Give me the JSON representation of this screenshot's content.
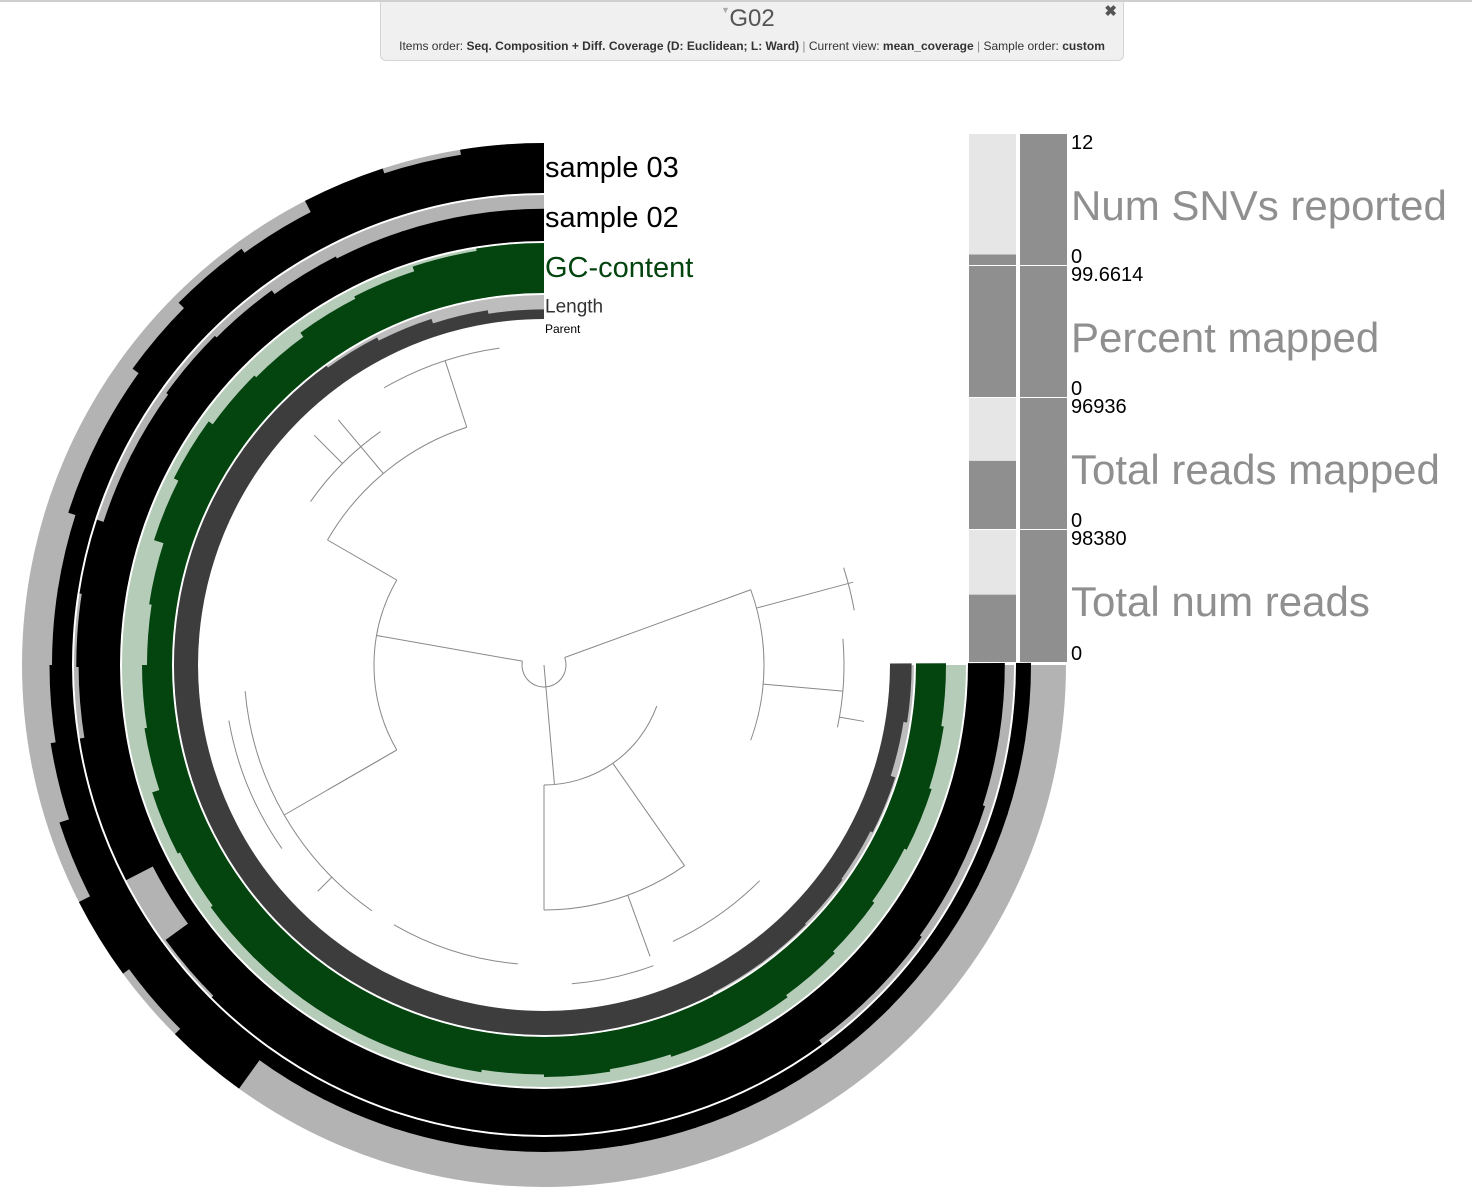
{
  "header": {
    "title": "G02",
    "items_order_label": "Items order:",
    "items_order_value": "Seq. Composition + Diff. Coverage (D: Euclidean; L: Ward)",
    "current_view_label": "Current view:",
    "current_view_value": "mean_coverage",
    "sample_order_label": "Sample order:",
    "sample_order_value": "custom",
    "separator": "|",
    "close_glyph": "✖",
    "caret_glyph": "▼"
  },
  "chart_data": {
    "type": "circular-phylogram",
    "layers": [
      {
        "name": "sample 03",
        "color": "#000000",
        "background": "#b3b3b3",
        "values": [
          1.0,
          0.9,
          1.0,
          0.75,
          0.85,
          0.7,
          0.55,
          0.55,
          0.4,
          0.4,
          0.45,
          0.55,
          0.75,
          1.0,
          0.85,
          1.0,
          0.3,
          0.3,
          0.3,
          0.3,
          0.3,
          0.3,
          0.3,
          0.3,
          0.3,
          0.3,
          0.3,
          0.3,
          0.3,
          0.3
        ]
      },
      {
        "name": "sample 02",
        "color": "#000000",
        "background": "#b3b3b3",
        "values": [
          0.7,
          0.7,
          0.7,
          0.75,
          0.85,
          0.9,
          0.85,
          0.85,
          1.0,
          0.95,
          0.9,
          1.0,
          1.0,
          0.35,
          0.95,
          1.0,
          1.0,
          1.0,
          1.0,
          1.0,
          1.0,
          1.0,
          1.0,
          1.0,
          0.9,
          0.9,
          0.85,
          0.85,
          0.8,
          0.8
        ]
      },
      {
        "name": "GC-content",
        "color": "#03440f",
        "background": "#b5ccb9",
        "values": [
          1.0,
          0.95,
          0.85,
          0.8,
          0.7,
          0.75,
          0.85,
          0.75,
          0.55,
          0.5,
          0.6,
          0.65,
          0.8,
          0.75,
          0.8,
          0.8,
          0.8,
          0.8,
          0.8,
          0.75,
          0.8,
          0.75,
          0.8,
          0.8,
          0.75,
          0.7,
          0.65,
          0.7,
          0.65,
          0.6
        ]
      },
      {
        "name": "Length",
        "color": "#3d3d3d",
        "background": "#bdbdbd",
        "values": [
          0.4,
          0.55,
          0.75,
          0.9,
          1.0,
          1.0,
          1.0,
          1.0,
          1.0,
          1.0,
          1.0,
          1.0,
          1.0,
          1.0,
          1.0,
          1.0,
          1.0,
          1.0,
          1.0,
          1.0,
          1.0,
          1.0,
          1.0,
          0.95,
          0.95,
          0.9,
          0.85,
          0.95,
          0.75,
          0.9
        ]
      },
      {
        "name": "Parent",
        "color": "#000000",
        "background": "#ffffff",
        "values": []
      }
    ],
    "samples_panel": [
      {
        "name": "Num SNVs reported",
        "max": "12",
        "min": "0",
        "values": [
          0.08,
          1.0
        ]
      },
      {
        "name": "Percent mapped",
        "max": "99.6614",
        "min": "0",
        "values": [
          1.0,
          1.0
        ]
      },
      {
        "name": "Total reads mapped",
        "max": "96936",
        "min": "0",
        "values": [
          0.52,
          1.0
        ]
      },
      {
        "name": "Total num reads",
        "max": "98380",
        "min": "0",
        "values": [
          0.51,
          1.0
        ]
      }
    ],
    "panel_colors": {
      "bar": "#8f8f8f",
      "background": "#e6e6e6",
      "label": "#8f8f8f"
    },
    "arc_degrees": 270,
    "tree_color": "#888888"
  }
}
